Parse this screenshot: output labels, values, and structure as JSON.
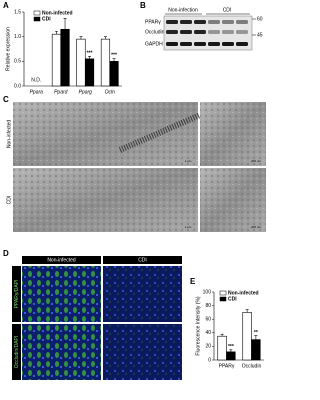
{
  "panels": [
    "A",
    "B",
    "C",
    "D",
    "E"
  ],
  "chart_data": [
    {
      "type": "bar",
      "ylabel": "Relative expression",
      "categories": [
        "Ppara",
        "Ppard",
        "Pparg",
        "Ocln"
      ],
      "category_style": "italic",
      "series": [
        {
          "name": "Non-infected",
          "color": "#ffffff",
          "values": [
            null,
            1.05,
            0.95,
            0.95
          ],
          "errors": [
            null,
            0.06,
            0.05,
            0.05
          ],
          "significance": [
            null,
            null,
            null,
            null
          ]
        },
        {
          "name": "CDI",
          "color": "#000000",
          "values": [
            null,
            1.15,
            0.55,
            0.5
          ],
          "errors": [
            null,
            0.22,
            0.05,
            0.06
          ],
          "significance": [
            null,
            null,
            "***",
            "***"
          ]
        }
      ],
      "notes": [
        "N.D.",
        null,
        null,
        null
      ],
      "ylim": [
        0,
        1.5
      ],
      "yticks": [
        {
          "value": 0,
          "label": "0.0"
        },
        0.5,
        {
          "value": 1,
          "label": "1.0"
        },
        1.5
      ],
      "legend": "top-left"
    },
    {
      "type": "bar",
      "ylabel": "Fluorescence Intensity (%)",
      "categories": [
        "PPARγ",
        "Occludin"
      ],
      "category_style": "normal",
      "series": [
        {
          "name": "Non-infected",
          "color": "#ffffff",
          "values": [
            35,
            70
          ],
          "errors": [
            3,
            4
          ],
          "significance": [
            null,
            null
          ]
        },
        {
          "name": "CDI",
          "color": "#000000",
          "values": [
            12,
            30
          ],
          "errors": [
            3,
            6
          ],
          "significance": [
            "***",
            "**"
          ]
        }
      ],
      "notes": [
        null,
        null
      ],
      "ylim": [
        0,
        100
      ],
      "yticks": [
        0,
        20,
        40,
        60,
        80,
        100
      ],
      "legend": "top-right"
    }
  ],
  "blot": {
    "groups": [
      "Non-infection",
      "CDI"
    ],
    "rows": [
      "PPARγ",
      "Occludin",
      "GAPDH"
    ],
    "markers": [
      "60",
      "45"
    ]
  },
  "em": {
    "rows": [
      "Non-infected",
      "CDI"
    ],
    "scale_bars": [
      "1 μm",
      "200 nm"
    ]
  },
  "fluorescence": {
    "columns": [
      "Non-infected",
      "CDI"
    ],
    "rows": [
      "PPARγ/DAPI",
      "Occludin/DAPI"
    ]
  }
}
